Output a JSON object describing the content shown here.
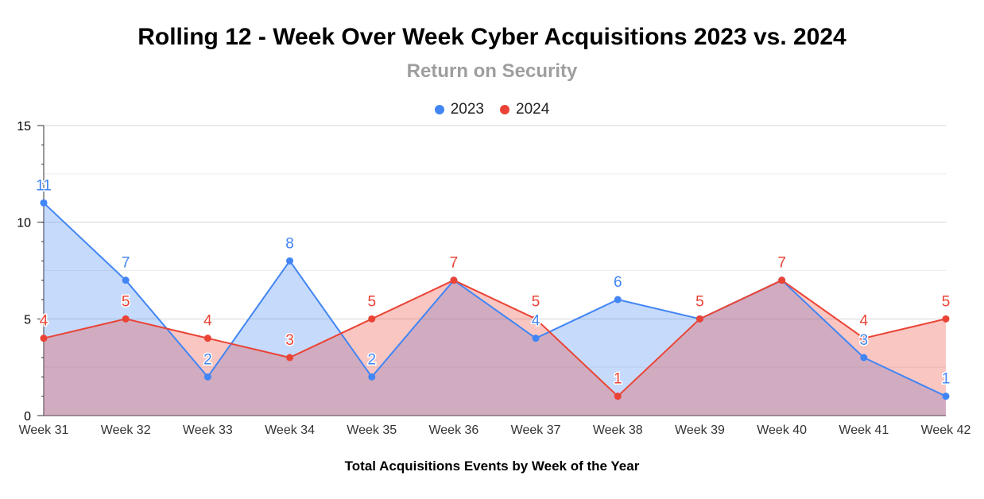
{
  "chart_data": {
    "type": "area",
    "title": "Rolling 12 - Week Over Week Cyber Acquisitions 2023 vs. 2024",
    "subtitle": "Return on Security",
    "xlabel": "Total Acquisitions Events by Week of the Year",
    "ylabel": "",
    "ylim": [
      0,
      15
    ],
    "yticks": [
      "0",
      "5",
      "10",
      "15"
    ],
    "grid": true,
    "legend_position": "top",
    "categories": [
      "Week 31",
      "Week 32",
      "Week 33",
      "Week 34",
      "Week 35",
      "Week 36",
      "Week 37",
      "Week 38",
      "Week 39",
      "Week 40",
      "Week 41",
      "Week 42"
    ],
    "series": [
      {
        "name": "2023",
        "color": "#4285f4",
        "values": [
          11,
          7,
          2,
          8,
          2,
          7,
          4,
          6,
          5,
          7,
          3,
          1
        ]
      },
      {
        "name": "2024",
        "color": "#ea4335",
        "values": [
          4,
          5,
          4,
          3,
          5,
          7,
          5,
          1,
          5,
          7,
          4,
          5
        ]
      }
    ]
  }
}
